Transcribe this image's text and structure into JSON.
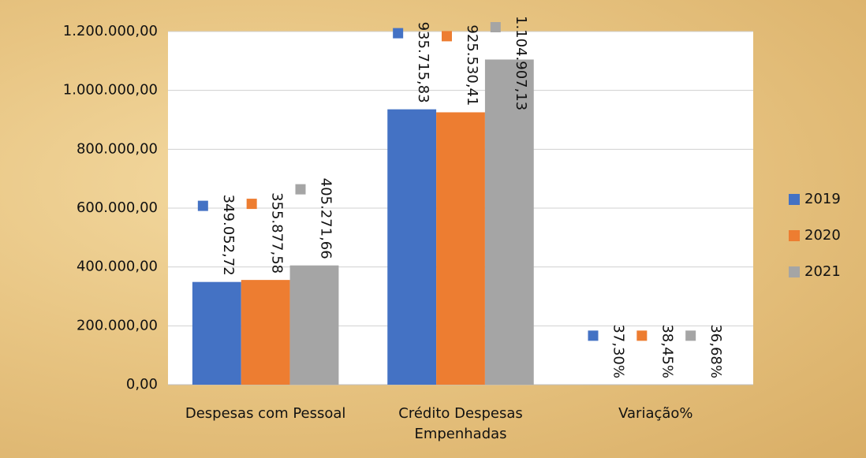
{
  "chart_data": {
    "type": "bar",
    "categories": [
      "Despesas com Pessoal",
      "Crédito Despesas Empenhadas",
      "Variação%"
    ],
    "series": [
      {
        "name": "2019",
        "color": "#4472c4",
        "values": [
          349052.72,
          935715.83,
          37.3
        ],
        "value_labels": [
          "349.052,72",
          "935.715,83",
          "37,30%"
        ]
      },
      {
        "name": "2020",
        "color": "#ed7d31",
        "values": [
          355877.58,
          925530.41,
          38.45
        ],
        "value_labels": [
          "355.877,58",
          "925.530,41",
          "38,45%"
        ]
      },
      {
        "name": "2021",
        "color": "#a5a5a5",
        "values": [
          405271.66,
          1104907.13,
          36.68
        ],
        "value_labels": [
          "405.271,66",
          "1.104.907,13",
          "36,68%"
        ]
      }
    ],
    "ylim": [
      0,
      1200000
    ],
    "yticks": [
      {
        "value": 0,
        "label": "0,00"
      },
      {
        "value": 200000,
        "label": "200.000,00"
      },
      {
        "value": 400000,
        "label": "400.000,00"
      },
      {
        "value": 600000,
        "label": "600.000,00"
      },
      {
        "value": 800000,
        "label": "800.000,00"
      },
      {
        "value": 1000000,
        "label": "1.000.000,00"
      },
      {
        "value": 1200000,
        "label": "1.200.000,00"
      }
    ],
    "grid": true,
    "legend": "right"
  }
}
